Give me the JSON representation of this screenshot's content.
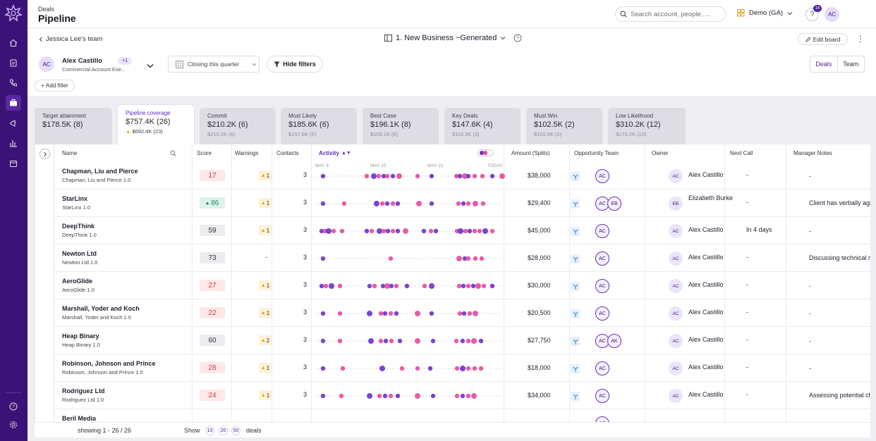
{
  "header": {
    "section": "Deals",
    "title": "Pipeline"
  },
  "search": {
    "placeholder": "Search account, people, ..."
  },
  "org": {
    "name": "Demo (GA)"
  },
  "help": {
    "label": "?",
    "badge": "16"
  },
  "user": {
    "initials": "AC"
  },
  "subbar": {
    "back_label": "Jessica Lee's team",
    "board_title": "1. New Business ~Generated",
    "edit_board": "Edit board"
  },
  "filters": {
    "owner_initials": "AC",
    "owner_name": "Alex Castillo",
    "owner_role": "Commercial Account Exe...",
    "owner_extra": "+1",
    "period": "Closing this quarter",
    "hide_filters": "Hide filters",
    "add_filter": "Add filter"
  },
  "view_toggle": {
    "deals": "Deals",
    "team": "Team"
  },
  "summary_cards": [
    {
      "title": "Target attainment",
      "value": "$178.5K (8)",
      "sub": ""
    },
    {
      "title": "Pipeline coverage",
      "value": "$757.4K (26)",
      "sub": "$692.4K (23)"
    },
    {
      "title": "Commit",
      "value": "$210.2K (6)",
      "sub": "$210.2K (6)"
    },
    {
      "title": "Most Likely",
      "value": "$185.6K (6)",
      "sub": "$157.6K (5)"
    },
    {
      "title": "Best Case",
      "value": "$196.1K (8)",
      "sub": "$159.1K (6)"
    },
    {
      "title": "Key Deals",
      "value": "$147.6K (4)",
      "sub": "$110.5K (3)"
    },
    {
      "title": "Must Win",
      "value": "$102.5K (2)",
      "sub": "$102.5K (2)"
    },
    {
      "title": "Low Likelihood",
      "value": "$310.2K (12)",
      "sub": "$273.2K (10)"
    }
  ],
  "columns": {
    "name": "Name",
    "score": "Score",
    "warnings": "Warnings",
    "contacts": "Contacts",
    "activity": "Activity",
    "amount": "Amount (Splits)",
    "team": "Opportunity Team",
    "owner": "Owner",
    "next_call": "Next Call",
    "notes": "Manager Notes"
  },
  "activity_axis": [
    "MAY 9",
    "MAY 15",
    "MAY 22",
    "TODAY"
  ],
  "colors": {
    "rail": "#3b1378",
    "accent": "#5b2bc2",
    "dot_purple": "#6a2fd1",
    "dot_pink": "#e64a9a"
  },
  "rows": [
    {
      "name": "Chapman, Liu and Pierce",
      "sub": "Chapman, Liu and Pierce 1.0",
      "score": "17",
      "score_type": "red",
      "warnings": "1",
      "contacts": "3",
      "amount": "$38,000",
      "team": [
        "AC"
      ],
      "owner_initials": "AC",
      "owner": "Alex Castillo",
      "next_call": "-",
      "notes": "-",
      "dots": [
        [
          16,
          0
        ],
        [
          78,
          1
        ],
        [
          88,
          0
        ],
        [
          95,
          1
        ],
        [
          102,
          0
        ],
        [
          107,
          1
        ],
        [
          115,
          0
        ],
        [
          124,
          1
        ],
        [
          150,
          1
        ],
        [
          170,
          0
        ],
        [
          205,
          1
        ],
        [
          210,
          0
        ],
        [
          217,
          1
        ],
        [
          222,
          0
        ],
        [
          231,
          1
        ],
        [
          242,
          1
        ],
        [
          256,
          0
        ],
        [
          270,
          1
        ]
      ]
    },
    {
      "name": "StarLinx",
      "sub": "StarLinx 1.0",
      "score": "86",
      "score_type": "green",
      "warnings": "1",
      "contacts": "3",
      "amount": "$29,400",
      "team": [
        "AC",
        "EB"
      ],
      "owner_initials": "EB",
      "owner": "Elizabeth Burke",
      "next_call": "-",
      "notes": "Client has verbally agreed.",
      "dots": [
        [
          16,
          0
        ],
        [
          46,
          1
        ],
        [
          92,
          0
        ],
        [
          100,
          1
        ],
        [
          107,
          0
        ],
        [
          115,
          1
        ],
        [
          122,
          0
        ],
        [
          152,
          1
        ],
        [
          170,
          0
        ],
        [
          208,
          1
        ],
        [
          215,
          0
        ],
        [
          222,
          1
        ],
        [
          232,
          1
        ],
        [
          243,
          1
        ]
      ]
    },
    {
      "name": "DeepThink",
      "sub": "DeepThink 1.0",
      "score": "59",
      "score_type": "gray",
      "warnings": "1",
      "contacts": "3",
      "amount": "$45,000",
      "team": [
        "AC"
      ],
      "owner_initials": "AC",
      "owner": "Alex Castillo",
      "next_call": "In 4 days",
      "notes": "-",
      "dots": [
        [
          14,
          0
        ],
        [
          19,
          1
        ],
        [
          24,
          0
        ],
        [
          31,
          1
        ],
        [
          43,
          1
        ],
        [
          78,
          0
        ],
        [
          85,
          1
        ],
        [
          96,
          0
        ],
        [
          102,
          1
        ],
        [
          108,
          0
        ],
        [
          115,
          1
        ],
        [
          122,
          0
        ],
        [
          133,
          1
        ],
        [
          159,
          0
        ],
        [
          169,
          1
        ],
        [
          176,
          0
        ],
        [
          206,
          1
        ],
        [
          211,
          0
        ],
        [
          218,
          1
        ],
        [
          224,
          0
        ],
        [
          231,
          1
        ],
        [
          238,
          1
        ],
        [
          246,
          0
        ],
        [
          256,
          1
        ]
      ]
    },
    {
      "name": "Newton Ltd",
      "sub": "Newton Ltd 1.0",
      "score": "73",
      "score_type": "gray",
      "warnings": "-",
      "contacts": "3",
      "amount": "$28,000",
      "team": [
        "AC"
      ],
      "owner_initials": "AC",
      "owner": "Alex Castillo",
      "next_call": "-",
      "notes": "Discussing technical requi",
      "dots": [
        [
          16,
          0
        ],
        [
          112,
          1
        ],
        [
          209,
          1
        ],
        [
          217,
          0
        ],
        [
          222,
          1
        ],
        [
          232,
          1
        ],
        [
          241,
          1
        ]
      ]
    },
    {
      "name": "AeroGlide",
      "sub": "AeroGlide 1.0",
      "score": "27",
      "score_type": "red",
      "warnings": "1",
      "contacts": "3",
      "amount": "$30,000",
      "team": [
        "AC"
      ],
      "owner_initials": "AC",
      "owner": "Alex Castillo",
      "next_call": "-",
      "notes": "-",
      "dots": [
        [
          14,
          0
        ],
        [
          20,
          1
        ],
        [
          28,
          0
        ],
        [
          40,
          1
        ],
        [
          82,
          0
        ],
        [
          89,
          1
        ],
        [
          101,
          0
        ],
        [
          107,
          1
        ],
        [
          113,
          0
        ],
        [
          120,
          1
        ],
        [
          135,
          0
        ],
        [
          160,
          1
        ],
        [
          170,
          0
        ],
        [
          209,
          1
        ],
        [
          215,
          0
        ],
        [
          222,
          1
        ],
        [
          229,
          0
        ],
        [
          236,
          1
        ],
        [
          244,
          1
        ],
        [
          256,
          0
        ]
      ]
    },
    {
      "name": "Marshall, Yoder and Koch",
      "sub": "Marshall, Yoder and Koch 1.0",
      "score": "22",
      "score_type": "red",
      "warnings": "1",
      "contacts": "3",
      "amount": "$20,500",
      "team": [
        "AC"
      ],
      "owner_initials": "AC",
      "owner": "Alex Castillo",
      "next_call": "-",
      "notes": "-",
      "dots": [
        [
          16,
          0
        ],
        [
          40,
          1
        ],
        [
          82,
          0
        ],
        [
          98,
          1
        ],
        [
          104,
          0
        ],
        [
          112,
          1
        ],
        [
          120,
          0
        ],
        [
          150,
          1
        ],
        [
          170,
          0
        ],
        [
          210,
          1
        ],
        [
          216,
          0
        ],
        [
          224,
          1
        ],
        [
          232,
          1
        ]
      ]
    },
    {
      "name": "Heap Binary",
      "sub": "Heap Binary 1.0",
      "score": "60",
      "score_type": "gray",
      "warnings": "2",
      "contacts": "3",
      "amount": "$27,750",
      "team": [
        "AC",
        "AK"
      ],
      "owner_initials": "AC",
      "owner": "Alex Castillo",
      "next_call": "-",
      "notes": "-",
      "dots": [
        [
          16,
          0
        ],
        [
          40,
          1
        ],
        [
          84,
          0
        ],
        [
          98,
          1
        ],
        [
          105,
          0
        ],
        [
          113,
          1
        ],
        [
          125,
          0
        ],
        [
          150,
          1
        ],
        [
          172,
          0
        ],
        [
          205,
          1
        ],
        [
          214,
          0
        ],
        [
          222,
          1
        ],
        [
          230,
          1
        ],
        [
          240,
          0
        ]
      ]
    },
    {
      "name": "Robinson, Johnson and Prince",
      "sub": "Robinson, Johnson and Prince 1.0",
      "score": "28",
      "score_type": "red",
      "warnings": "1",
      "contacts": "3",
      "amount": "$18,000",
      "team": [
        "AC"
      ],
      "owner_initials": "AC",
      "owner": "Alex Castillo",
      "next_call": "-",
      "notes": "-",
      "dots": [
        [
          16,
          0
        ],
        [
          44,
          1
        ],
        [
          100,
          0
        ],
        [
          128,
          1
        ],
        [
          150,
          1
        ],
        [
          168,
          0
        ],
        [
          206,
          1
        ],
        [
          214,
          0
        ],
        [
          222,
          1
        ],
        [
          231,
          1
        ],
        [
          240,
          1
        ]
      ]
    },
    {
      "name": "Rodriguez Ltd",
      "sub": "Rodriguez Ltd 1.0",
      "score": "24",
      "score_type": "red",
      "warnings": "1",
      "contacts": "3",
      "amount": "$34,000",
      "team": [
        "AC"
      ],
      "owner_initials": "AC",
      "owner": "Alex Castillo",
      "next_call": "-",
      "notes": "Assessing potential challe",
      "dots": [
        [
          16,
          0
        ],
        [
          42,
          1
        ],
        [
          82,
          0
        ],
        [
          96,
          1
        ],
        [
          104,
          0
        ],
        [
          112,
          1
        ],
        [
          122,
          0
        ],
        [
          150,
          1
        ],
        [
          172,
          0
        ],
        [
          206,
          1
        ],
        [
          214,
          0
        ],
        [
          222,
          1
        ],
        [
          230,
          1
        ]
      ]
    },
    {
      "name": "Beril Media",
      "sub": "",
      "score": "",
      "score_type": "gray",
      "warnings": "",
      "contacts": "",
      "amount": "",
      "team": [
        "AC"
      ],
      "owner_initials": "",
      "owner": "",
      "next_call": "",
      "notes": "",
      "dots": []
    }
  ],
  "footer": {
    "showing": "showing 1 - 26 / 26",
    "show_label": "Show",
    "sizes": [
      "10",
      "20",
      "50"
    ],
    "unit": "deals"
  }
}
